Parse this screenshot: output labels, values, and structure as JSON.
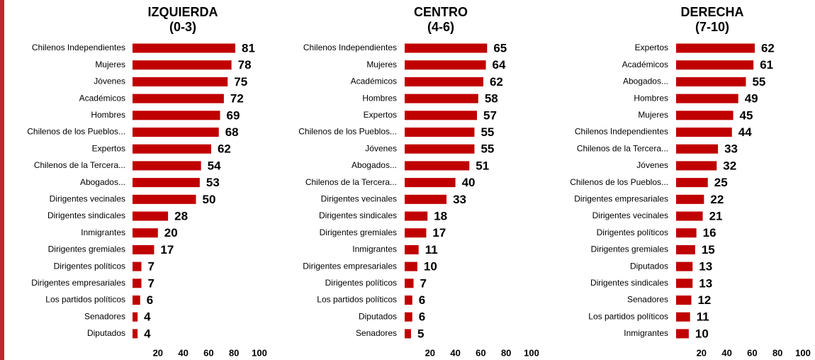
{
  "chart_data": [
    {
      "type": "barh",
      "title": "IZQUIERDA",
      "subtitle": "(0-3)",
      "color": "#c00000",
      "categories": [
        "Chilenos Independientes",
        "Mujeres",
        "Jóvenes",
        "Académicos",
        "Hombres",
        "Chilenos de los Pueblos...",
        "Expertos",
        "Chilenos de la Tercera...",
        "Abogados...",
        "Dirigentes vecinales",
        "Dirigentes sindicales",
        "Inmigrantes",
        "Dirigentes gremiales",
        "Dirigentes políticos",
        "Dirigentes empresariales",
        "Los partidos políticos",
        "Senadores",
        "Diputados"
      ],
      "values": [
        81,
        78,
        75,
        72,
        69,
        68,
        62,
        54,
        53,
        50,
        28,
        20,
        17,
        7,
        7,
        6,
        4,
        4
      ],
      "xlim": [
        0,
        100
      ],
      "xticks": [
        20,
        40,
        60,
        80,
        100
      ]
    },
    {
      "type": "barh",
      "title": "CENTRO",
      "subtitle": "(4-6)",
      "color": "#c00000",
      "categories": [
        "Chilenos Independientes",
        "Mujeres",
        "Académicos",
        "Hombres",
        "Expertos",
        "Chilenos de los Pueblos...",
        "Jóvenes",
        "Abogados...",
        "Chilenos de la Tercera...",
        "Dirigentes vecinales",
        "Dirigentes sindicales",
        "Dirigentes gremiales",
        "Inmigrantes",
        "Dirigentes empresariales",
        "Dirigentes políticos",
        "Los partidos políticos",
        "Diputados",
        "Senadores"
      ],
      "values": [
        65,
        64,
        62,
        58,
        57,
        55,
        55,
        51,
        40,
        33,
        18,
        17,
        11,
        10,
        7,
        6,
        6,
        5
      ],
      "xlim": [
        0,
        100
      ],
      "xticks": [
        20,
        40,
        60,
        80,
        100
      ]
    },
    {
      "type": "barh",
      "title": "DERECHA",
      "subtitle": "(7-10)",
      "color": "#c00000",
      "categories": [
        "Expertos",
        "Académicos",
        "Abogados...",
        "Hombres",
        "Mujeres",
        "Chilenos Independientes",
        "Chilenos de la Tercera...",
        "Jóvenes",
        "Chilenos de los Pueblos...",
        "Dirigentes empresariales",
        "Dirigentes vecinales",
        "Dirigentes políticos",
        "Dirigentes gremiales",
        "Diputados",
        "Dirigentes sindicales",
        "Senadores",
        "Los partidos políticos",
        "Inmigrantes"
      ],
      "values": [
        62,
        61,
        55,
        49,
        45,
        44,
        33,
        32,
        25,
        22,
        21,
        16,
        15,
        13,
        13,
        12,
        11,
        10
      ],
      "xlim": [
        0,
        100
      ],
      "xticks": [
        20,
        40,
        60,
        80,
        100
      ]
    }
  ]
}
